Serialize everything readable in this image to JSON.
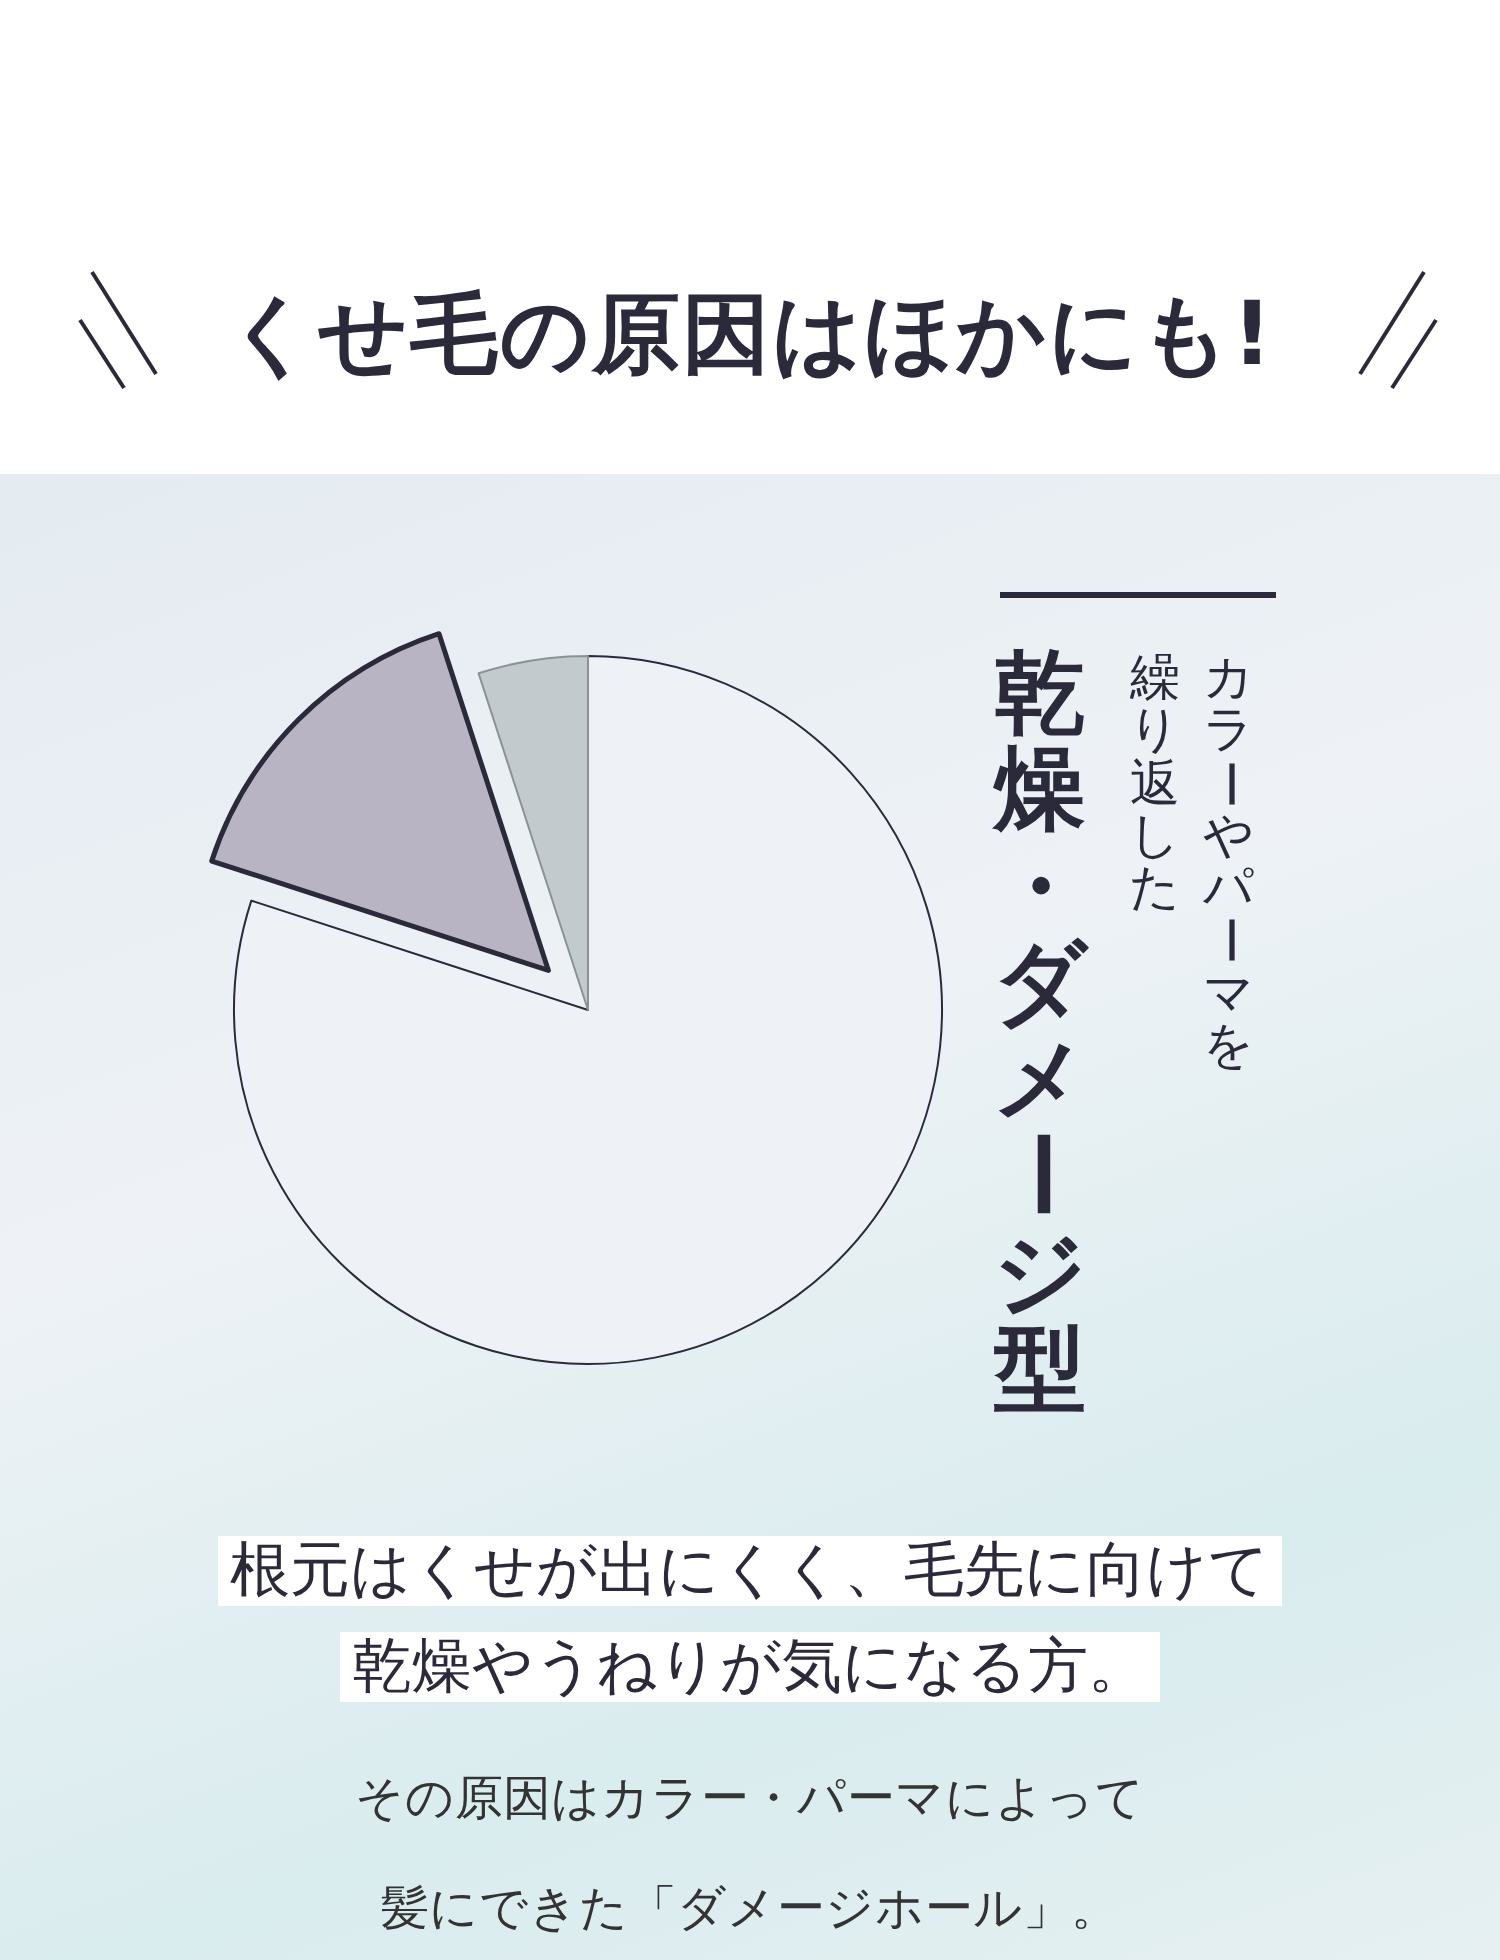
{
  "chart_data": {
    "type": "pie",
    "title": "くせ毛の原因はほかにも!",
    "categories": [
      null,
      null,
      null
    ],
    "values": [
      80,
      15,
      5
    ],
    "colors": [
      "#eef2f7",
      "#b8b4c4",
      "#c3cacd"
    ],
    "legend": false,
    "annotations": [
      "カラーやパーマを",
      "繰り返した",
      "乾燥・ダメージ型",
      "根元はくせが出にくく、毛先に向けて乾燥やうねりが気になる方。",
      "その原因はカラー・パーマによって髪にできた「ダメージホール」。"
    ]
  }
}
